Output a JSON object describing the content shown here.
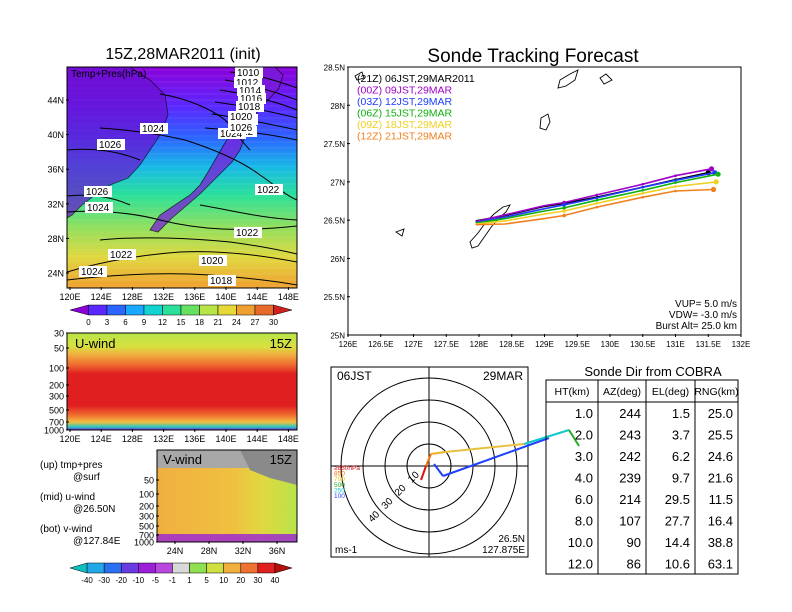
{
  "panel_map": {
    "title": "15Z,28MAR2011 (init)",
    "overlay_label": "Temp+Pres(hPa)",
    "x_ticks": [
      "120E",
      "124E",
      "128E",
      "132E",
      "136E",
      "140E",
      "144E",
      "148E"
    ],
    "y_ticks": [
      "44N",
      "40N",
      "36N",
      "32N",
      "28N",
      "24N"
    ],
    "colorbar_labels": [
      "0",
      "3",
      "6",
      "9",
      "12",
      "15",
      "18",
      "21",
      "24",
      "27",
      "30"
    ],
    "colorbar_colors": [
      "#8a00d8",
      "#5a28ff",
      "#2c64ff",
      "#18a8ff",
      "#12d2d2",
      "#2ae09a",
      "#66e060",
      "#b8e448",
      "#e6d838",
      "#f0a030",
      "#e86a2a",
      "#d02020"
    ],
    "isobars": [
      {
        "label": "1010"
      },
      {
        "label": "1012"
      },
      {
        "label": "1014"
      },
      {
        "label": "1016"
      },
      {
        "label": "1018"
      },
      {
        "label": "1020"
      },
      {
        "label": "1022"
      },
      {
        "label": "1024"
      },
      {
        "label": "1026"
      },
      {
        "label": "1026"
      },
      {
        "label": "1026"
      },
      {
        "label": "1024"
      },
      {
        "label": "1024"
      },
      {
        "label": "1022"
      },
      {
        "label": "1022"
      },
      {
        "label": "1020"
      },
      {
        "label": "1018"
      },
      {
        "label": "1024"
      },
      {
        "label": "1022"
      },
      {
        "label": "1020"
      }
    ]
  },
  "panel_uwind": {
    "label": "U-wind",
    "time": "15Z",
    "y_ticks": [
      "30",
      "50",
      "100",
      "200",
      "300",
      "500",
      "700",
      "1000"
    ],
    "x_ticks": [
      "120E",
      "124E",
      "128E",
      "132E",
      "136E",
      "140E",
      "144E",
      "148E"
    ]
  },
  "panel_vwind": {
    "label": "V-wind",
    "time": "15Z",
    "y_ticks": [
      "50",
      "100",
      "200",
      "300",
      "500",
      "700",
      "1000"
    ],
    "x_ticks": [
      "24N",
      "28N",
      "32N",
      "36N"
    ]
  },
  "legend_text": {
    "line1": "(up) tmp+pres",
    "line2": "@surf",
    "line3": "(mid) u-wind",
    "line4": "@26.50N",
    "line5": "(bot) v-wind",
    "line6": "@127.84E"
  },
  "wind_colorbar": {
    "labels": [
      "-40",
      "-30",
      "-20",
      "-10",
      "-5",
      "-1",
      "1",
      "5",
      "10",
      "20",
      "30",
      "40"
    ],
    "colors": [
      "#10c0c0",
      "#22a8e8",
      "#2a70f0",
      "#6a3ce0",
      "#9a20d8",
      "#b848e0",
      "#d8d8d8",
      "#8ee050",
      "#d0e040",
      "#f0b040",
      "#f07030",
      "#e02020",
      "#b40e0e"
    ]
  },
  "tracking": {
    "title": "Sonde Tracking Forecast",
    "x_ticks": [
      "126E",
      "126.5E",
      "127E",
      "127.5E",
      "128E",
      "128.5E",
      "129E",
      "129.5E",
      "130E",
      "130.5E",
      "131E",
      "131.5E",
      "132E"
    ],
    "y_ticks": [
      "28.5N",
      "28N",
      "27.5N",
      "27N",
      "26.5N",
      "26N",
      "25.5N",
      "25N"
    ],
    "legend": [
      {
        "label": "(21Z)  06JST,29MAR2011",
        "color": "#000000"
      },
      {
        "label": "(00Z)  09JST,29MAR",
        "color": "#a000c8"
      },
      {
        "label": "(03Z)  12JST,29MAR",
        "color": "#1e3cff"
      },
      {
        "label": "(06Z)  15JST,29MAR",
        "color": "#10b010"
      },
      {
        "label": "(09Z)  18JST,29MAR",
        "color": "#f0d020"
      },
      {
        "label": "(12Z)  21JST,29MAR",
        "color": "#f08020"
      }
    ],
    "params": {
      "vup": "VUP= 5.0 m/s",
      "vdw": "VDW= -3.0 m/s",
      "burst": "Burst Alt= 25.0 km"
    }
  },
  "polar": {
    "time_label": "06JST",
    "date_label": "29MAR",
    "lat_label": "26.5N",
    "lon_label": "127.875E",
    "unit_label": "ms-1",
    "ring_labels": [
      "10",
      "20",
      "30",
      "40"
    ],
    "levels": [
      {
        "label": "≥850hPa",
        "color": "#e01010"
      },
      {
        "label": "850",
        "color": "#f07000"
      },
      {
        "label": "700",
        "color": "#f0c000"
      },
      {
        "label": "500",
        "color": "#20b020"
      },
      {
        "label": "250",
        "color": "#10c8c8"
      },
      {
        "label": "100",
        "color": "#2040ff"
      }
    ]
  },
  "cobra_table": {
    "title": "Sonde Dir from COBRA",
    "columns": [
      "HT(km)",
      "AZ(deg)",
      "EL(deg)",
      "RNG(km)"
    ],
    "rows": [
      [
        "1.0",
        "244",
        "1.5",
        "25.0"
      ],
      [
        "2.0",
        "243",
        "3.7",
        "25.5"
      ],
      [
        "3.0",
        "242",
        "6.2",
        "24.6"
      ],
      [
        "4.0",
        "239",
        "9.7",
        "21.6"
      ],
      [
        "6.0",
        "214",
        "29.5",
        "11.5"
      ],
      [
        "8.0",
        "107",
        "27.7",
        "16.4"
      ],
      [
        "10.0",
        "90",
        "14.4",
        "38.8"
      ],
      [
        "12.0",
        "86",
        "10.6",
        "63.1"
      ]
    ]
  },
  "chart_data": [
    {
      "type": "heatmap",
      "title": "15Z,28MAR2011 (init)",
      "xlabel": "",
      "ylabel": "",
      "x_range": [
        120,
        150
      ],
      "y_range": [
        22,
        47
      ],
      "variable": "Temp+Pres(hPa)",
      "color_range": [
        0,
        30
      ]
    },
    {
      "type": "heatmap",
      "title": "U-wind 15Z",
      "x_range": [
        120,
        150
      ],
      "y_levels_hPa": [
        30,
        50,
        100,
        200,
        300,
        500,
        700,
        1000
      ]
    },
    {
      "type": "heatmap",
      "title": "V-wind 15Z",
      "x_range": [
        22,
        38
      ],
      "y_levels_hPa": [
        50,
        100,
        200,
        300,
        500,
        700,
        1000
      ]
    },
    {
      "type": "line",
      "title": "Sonde Tracking Forecast",
      "xlim": [
        126,
        132
      ],
      "ylim": [
        25,
        28.5
      ],
      "series": [
        {
          "name": "(21Z)  06JST,29MAR2011",
          "points": [
            [
              127.95,
              26.49
            ],
            [
              128.4,
              26.56
            ],
            [
              129.0,
              26.68
            ],
            [
              129.3,
              26.72
            ],
            [
              129.8,
              26.8
            ],
            [
              130.5,
              26.93
            ],
            [
              131.0,
              27.03
            ],
            [
              131.5,
              27.12
            ]
          ]
        },
        {
          "name": "(00Z)  09JST,29MAR",
          "points": [
            [
              127.95,
              26.48
            ],
            [
              128.4,
              26.57
            ],
            [
              129.0,
              26.69
            ],
            [
              129.3,
              26.73
            ],
            [
              129.8,
              26.83
            ],
            [
              130.5,
              26.97
            ],
            [
              131.0,
              27.08
            ],
            [
              131.55,
              27.17
            ]
          ]
        },
        {
          "name": "(03Z)  12JST,29MAR",
          "points": [
            [
              127.95,
              26.47
            ],
            [
              128.4,
              26.54
            ],
            [
              129.0,
              26.65
            ],
            [
              129.3,
              26.7
            ],
            [
              129.8,
              26.79
            ],
            [
              130.5,
              26.93
            ],
            [
              131.0,
              27.02
            ],
            [
              131.6,
              27.12
            ]
          ]
        },
        {
          "name": "(06Z)  15JST,29MAR",
          "points": [
            [
              127.95,
              26.46
            ],
            [
              128.4,
              26.52
            ],
            [
              129.0,
              26.62
            ],
            [
              129.3,
              26.66
            ],
            [
              129.8,
              26.76
            ],
            [
              130.5,
              26.89
            ],
            [
              131.0,
              26.99
            ],
            [
              131.65,
              27.1
            ]
          ]
        },
        {
          "name": "(09Z)  18JST,29MAR",
          "points": [
            [
              127.95,
              26.45
            ],
            [
              128.4,
              26.49
            ],
            [
              129.0,
              26.58
            ],
            [
              129.3,
              26.62
            ],
            [
              129.8,
              26.72
            ],
            [
              130.5,
              26.85
            ],
            [
              131.0,
              26.94
            ],
            [
              131.62,
              27.0
            ]
          ]
        },
        {
          "name": "(12Z)  21JST,29MAR",
          "points": [
            [
              127.95,
              26.44
            ],
            [
              128.4,
              26.45
            ],
            [
              129.0,
              26.52
            ],
            [
              129.3,
              26.56
            ],
            [
              129.8,
              26.67
            ],
            [
              130.5,
              26.8
            ],
            [
              131.0,
              26.88
            ],
            [
              131.58,
              26.9
            ]
          ]
        }
      ]
    },
    {
      "type": "table",
      "title": "Sonde Dir from COBRA",
      "columns": [
        "HT(km)",
        "AZ(deg)",
        "EL(deg)",
        "RNG(km)"
      ],
      "rows": [
        [
          1.0,
          244,
          1.5,
          25.0
        ],
        [
          2.0,
          243,
          3.7,
          25.5
        ],
        [
          3.0,
          242,
          6.2,
          24.6
        ],
        [
          4.0,
          239,
          9.7,
          21.6
        ],
        [
          6.0,
          214,
          29.5,
          11.5
        ],
        [
          8.0,
          107,
          27.7,
          16.4
        ],
        [
          10.0,
          90,
          14.4,
          38.8
        ],
        [
          12.0,
          86,
          10.6,
          63.1
        ]
      ]
    }
  ]
}
